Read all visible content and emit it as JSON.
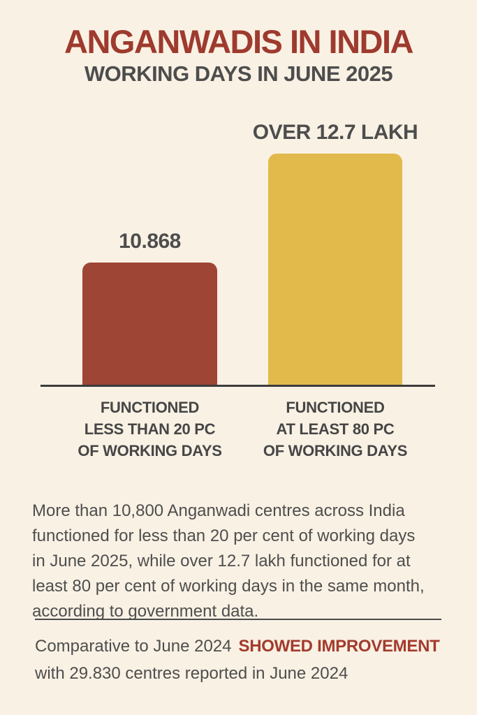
{
  "header": {
    "title": "ANGANWADIS IN INDIA",
    "subtitle": "WORKING DAYS IN JUNE 2025"
  },
  "chart": {
    "bar1": {
      "value_label": "10.868",
      "category_label": "FUNCTIONED\nLESS THAN 20 PC\nOF WORKING DAYS",
      "color": "#9e4536"
    },
    "bar2": {
      "value_label": "OVER 12.7 LAKH",
      "category_label": "FUNCTIONED\nAT LEAST 80 PC\nOF WORKING DAYS",
      "color": "#e2ba4c"
    }
  },
  "body": {
    "text": "More than 10,800 Anganwadi centres across India\nfunctioned for less than 20 per cent of working days\nin June 2025, while over 12.7 lakh functioned for at\nleast 80 per cent of working days in the same month,\naccording to government data."
  },
  "footer": {
    "line1_prefix": "Comparative to June 2024",
    "line1_highlight": "SHOWED IMPROVEMENT",
    "line2": "with 29.830 centres reported in June 2024"
  },
  "colors": {
    "background": "#f9f1e4",
    "title_red": "#9e3a2e",
    "text_gray": "#4e4e4e",
    "label_gray": "#464646",
    "bar_red": "#9e4536",
    "bar_yellow": "#e2ba4c",
    "axis": "#3c3c3c",
    "highlight_red": "#a23b2d"
  },
  "chart_data": {
    "type": "bar",
    "title": "Anganwadis in India — Working days in June 2025",
    "categories": [
      "Functioned less than 20 pc of working days",
      "Functioned at least 80 pc of working days"
    ],
    "values": [
      10868,
      1270000
    ],
    "value_labels": [
      "10.868",
      "OVER 12.7 LAKH"
    ],
    "bar_colors": [
      "#9e4536",
      "#e2ba4c"
    ],
    "xlabel": "",
    "ylabel": "",
    "grid": false,
    "legend_position": "none",
    "not_drawn_to_scale": true
  }
}
